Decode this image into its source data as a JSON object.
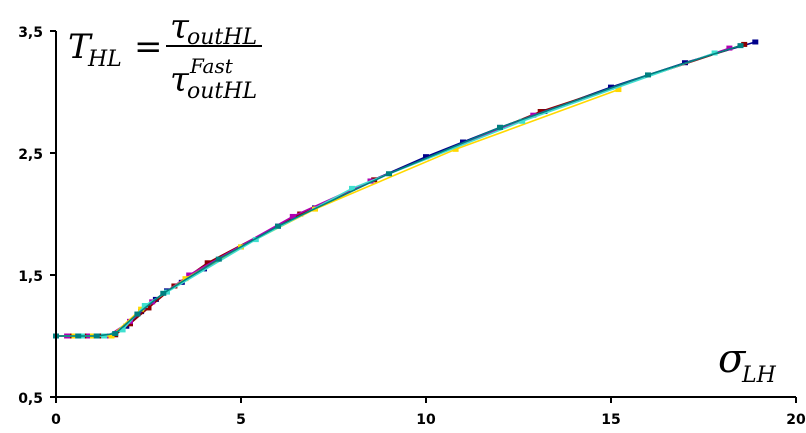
{
  "chart_data": {
    "type": "line",
    "title": "",
    "xlabel": "σ_LH",
    "ylabel": "T_HL = τ_outHL / τ_outHL^Fast",
    "xlim": [
      0,
      20
    ],
    "ylim": [
      0.5,
      3.5
    ],
    "x_ticks": [
      "0",
      "5",
      "10",
      "15",
      "20"
    ],
    "y_ticks": [
      "0,5",
      "1,5",
      "2,5",
      "3,5"
    ],
    "grid": false,
    "legend": "none",
    "formula": {
      "lhs_symbol": "T",
      "lhs_sub": "HL",
      "eq": "=",
      "num_symbol": "τ",
      "num_sub": "outHL",
      "den_symbol": "τ",
      "den_sub": "outHL",
      "den_sup": "Fast"
    },
    "x_axis_label": {
      "symbol": "σ",
      "sub": "LH"
    },
    "series": [
      {
        "color": "#00008b",
        "x": [
          0,
          0.5,
          1.0,
          1.5,
          1.9,
          2.3,
          2.7,
          3.0,
          3.4,
          4.0,
          5.0,
          6.0,
          7.0,
          8.5,
          10.0,
          11.0,
          12.0,
          13.2,
          15.0,
          17.0,
          18.9
        ],
        "y": [
          1.0,
          1.0,
          1.0,
          1.0,
          1.08,
          1.2,
          1.3,
          1.37,
          1.44,
          1.55,
          1.73,
          1.9,
          2.05,
          2.27,
          2.47,
          2.59,
          2.71,
          2.84,
          3.04,
          3.24,
          3.41
        ]
      },
      {
        "color": "#8b0000",
        "x": [
          0,
          0.4,
          0.8,
          1.2,
          1.6,
          2.0,
          2.5,
          3.2,
          4.1,
          6.6,
          8.6,
          13.1,
          18.6
        ],
        "y": [
          1.0,
          1.0,
          1.0,
          1.0,
          1.01,
          1.1,
          1.23,
          1.41,
          1.6,
          2.0,
          2.28,
          2.84,
          3.39
        ]
      },
      {
        "color": "#b000b0",
        "x": [
          0,
          0.3,
          0.9,
          1.4,
          2.0,
          2.6,
          3.6,
          6.4,
          8.5,
          12.9,
          18.2
        ],
        "y": [
          1.0,
          1.0,
          1.0,
          1.0,
          1.12,
          1.28,
          1.5,
          1.98,
          2.27,
          2.81,
          3.36
        ]
      },
      {
        "color": "#ffd800",
        "x": [
          0,
          0.5,
          1.0,
          1.5,
          2.3,
          3.5,
          5.0,
          7.0,
          10.8,
          15.2
        ],
        "y": [
          1.0,
          1.0,
          1.0,
          1.0,
          1.22,
          1.47,
          1.73,
          2.04,
          2.53,
          3.02
        ]
      },
      {
        "color": "#40e0d0",
        "x": [
          0,
          0.7,
          1.3,
          1.8,
          2.4,
          3.0,
          5.4,
          8.0,
          12.6,
          17.8
        ],
        "y": [
          1.0,
          1.0,
          1.0,
          1.05,
          1.25,
          1.36,
          1.79,
          2.21,
          2.76,
          3.32
        ]
      },
      {
        "color": "#008080",
        "x": [
          0,
          0.6,
          1.1,
          1.6,
          2.2,
          2.9,
          4.4,
          6.0,
          9.0,
          12.0,
          16.0,
          18.5
        ],
        "y": [
          1.0,
          1.0,
          1.0,
          1.02,
          1.18,
          1.35,
          1.63,
          1.9,
          2.33,
          2.71,
          3.14,
          3.38
        ]
      }
    ]
  }
}
